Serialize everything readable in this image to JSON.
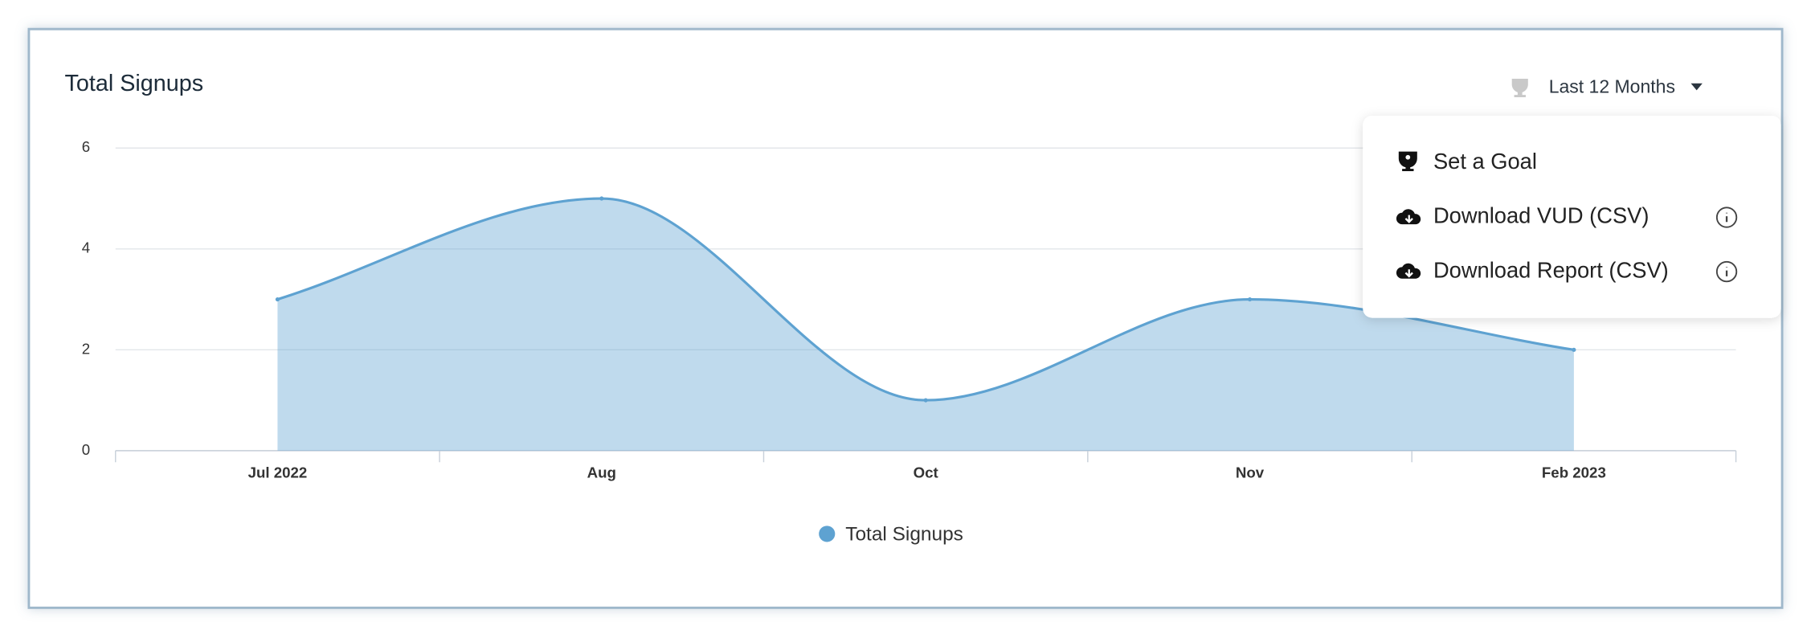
{
  "chart_data": {
    "type": "area",
    "title": "Total Signups",
    "categories": [
      "Jul 2022",
      "Aug",
      "Oct",
      "Nov",
      "Feb 2023"
    ],
    "series": [
      {
        "name": "Total Signups",
        "color": "#5ea2d1",
        "values": [
          3,
          5,
          1,
          3,
          2
        ]
      }
    ],
    "ylim": [
      0,
      6
    ],
    "yticks": [
      0,
      2,
      4,
      6
    ],
    "grid": true,
    "legend": "bottom"
  },
  "controls": {
    "period": "Last 12 Months",
    "menu": [
      {
        "label": "Set a Goal"
      },
      {
        "label": "Download VUD (CSV)"
      },
      {
        "label": "Download Report (CSV)"
      }
    ]
  }
}
